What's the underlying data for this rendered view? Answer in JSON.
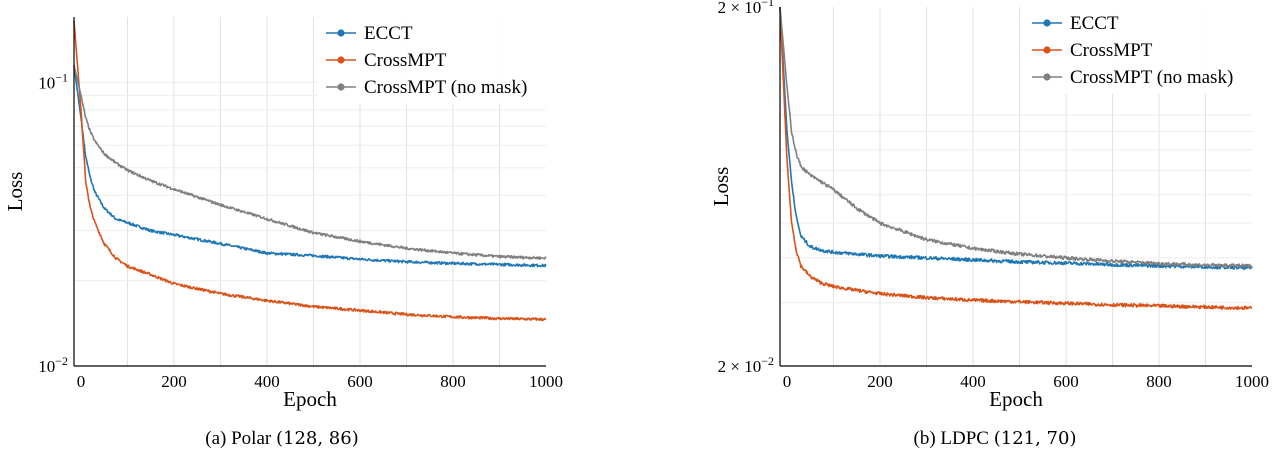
{
  "chart_data": [
    {
      "id": "polar",
      "type": "line",
      "caption_prefix": "(a) Polar",
      "caption_code": "(128, 86)",
      "xlabel": "Epoch",
      "ylabel": "Loss",
      "xlim": [
        -15,
        1000
      ],
      "ylim": [
        0.01,
        0.17
      ],
      "yscale": "log",
      "xticks": [
        0,
        200,
        400,
        600,
        800,
        1000
      ],
      "yticks": [
        {
          "value": 0.1,
          "base": "10",
          "exp": "−1"
        },
        {
          "value": 0.01,
          "base": "10",
          "exp": "−2"
        }
      ],
      "grid": true,
      "legend_position": "top-right",
      "series": [
        {
          "name": "ECCT",
          "color": "#1f77b4",
          "x": [
            -15,
            0,
            10,
            20,
            30,
            50,
            75,
            100,
            150,
            200,
            300,
            400,
            500,
            600,
            700,
            800,
            900,
            1000
          ],
          "y": [
            0.115,
            0.075,
            0.055,
            0.046,
            0.041,
            0.036,
            0.033,
            0.032,
            0.03,
            0.029,
            0.027,
            0.025,
            0.0245,
            0.0238,
            0.0233,
            0.023,
            0.0228,
            0.0226
          ]
        },
        {
          "name": "CrossMPT",
          "color": "#d95319",
          "x": [
            -15,
            0,
            10,
            20,
            30,
            50,
            75,
            100,
            150,
            200,
            300,
            400,
            500,
            600,
            700,
            800,
            900,
            1000
          ],
          "y": [
            0.165,
            0.08,
            0.045,
            0.036,
            0.032,
            0.027,
            0.024,
            0.0225,
            0.021,
            0.0195,
            0.018,
            0.017,
            0.0162,
            0.0157,
            0.0152,
            0.0149,
            0.0147,
            0.0146
          ]
        },
        {
          "name": "CrossMPT (no mask)",
          "color": "#808080",
          "x": [
            -15,
            0,
            10,
            20,
            30,
            50,
            75,
            100,
            150,
            200,
            300,
            400,
            500,
            600,
            700,
            800,
            900,
            1000
          ],
          "y": [
            0.115,
            0.09,
            0.075,
            0.067,
            0.062,
            0.056,
            0.052,
            0.049,
            0.045,
            0.042,
            0.037,
            0.033,
            0.0295,
            0.0275,
            0.026,
            0.025,
            0.0243,
            0.024
          ]
        }
      ]
    },
    {
      "id": "ldpc",
      "type": "line",
      "caption_prefix": "(b) LDPC",
      "caption_code": "(121, 70)",
      "xlabel": "Epoch",
      "ylabel": "Loss",
      "xlim": [
        -15,
        1000
      ],
      "ylim": [
        0.02,
        0.2
      ],
      "yscale": "log",
      "xticks": [
        0,
        200,
        400,
        600,
        800,
        1000
      ],
      "yticks": [
        {
          "value": 0.2,
          "base": "2 × 10",
          "exp": "−1"
        },
        {
          "value": 0.02,
          "base": "2 × 10",
          "exp": "−2"
        }
      ],
      "grid": true,
      "legend_position": "top-right",
      "series": [
        {
          "name": "ECCT",
          "color": "#1f77b4",
          "x": [
            -15,
            0,
            10,
            20,
            30,
            50,
            75,
            100,
            150,
            200,
            300,
            400,
            500,
            600,
            700,
            800,
            900,
            1000
          ],
          "y": [
            0.2,
            0.09,
            0.065,
            0.052,
            0.046,
            0.043,
            0.042,
            0.0415,
            0.041,
            0.0405,
            0.04,
            0.0395,
            0.039,
            0.0387,
            0.0383,
            0.038,
            0.0378,
            0.0375
          ]
        },
        {
          "name": "CrossMPT",
          "color": "#d95319",
          "x": [
            -15,
            0,
            10,
            20,
            30,
            50,
            75,
            100,
            150,
            200,
            300,
            400,
            500,
            600,
            700,
            800,
            900,
            1000
          ],
          "y": [
            0.2,
            0.075,
            0.05,
            0.042,
            0.038,
            0.0355,
            0.034,
            0.0333,
            0.0325,
            0.0318,
            0.031,
            0.0305,
            0.0302,
            0.0299,
            0.0296,
            0.0294,
            0.0292,
            0.029
          ]
        },
        {
          "name": "CrossMPT (no mask)",
          "color": "#808080",
          "x": [
            -15,
            0,
            10,
            20,
            30,
            50,
            75,
            100,
            150,
            200,
            300,
            400,
            500,
            600,
            700,
            800,
            900,
            1000
          ],
          "y": [
            0.2,
            0.12,
            0.09,
            0.078,
            0.072,
            0.068,
            0.065,
            0.062,
            0.055,
            0.05,
            0.045,
            0.0425,
            0.041,
            0.04,
            0.0392,
            0.0386,
            0.0382,
            0.038
          ]
        }
      ]
    }
  ]
}
